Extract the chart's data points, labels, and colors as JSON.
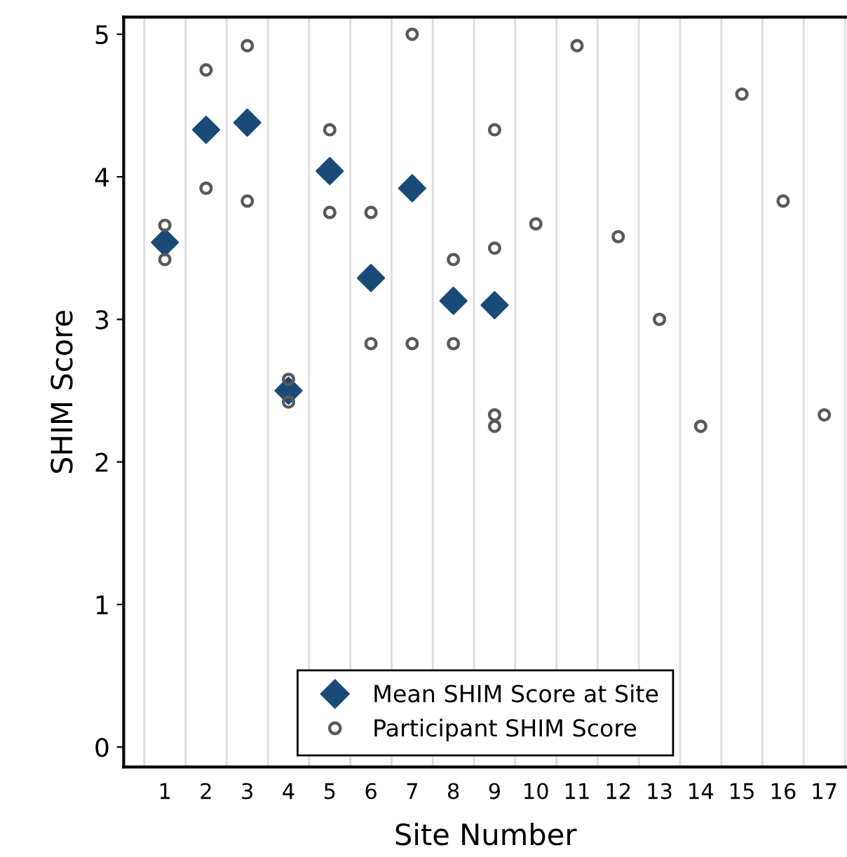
{
  "chart_data": {
    "type": "scatter",
    "xlabel": "Site Number",
    "ylabel": "SHIM Score",
    "categories": [
      "1",
      "2",
      "3",
      "4",
      "5",
      "6",
      "7",
      "8",
      "9",
      "10",
      "11",
      "12",
      "13",
      "14",
      "15",
      "16",
      "17"
    ],
    "series": [
      {
        "name": "Mean SHIM Score at Site",
        "color": "#1a4a78",
        "marker": "diamond",
        "x": [
          "1",
          "2",
          "3",
          "4",
          "5",
          "6",
          "7",
          "8",
          "9"
        ],
        "values": [
          3.54,
          4.33,
          4.38,
          2.5,
          4.04,
          3.29,
          3.92,
          3.13,
          3.1
        ]
      },
      {
        "name": "Participant SHIM Score",
        "color": "#595959",
        "marker": "circle",
        "x": [
          "1",
          "1",
          "2",
          "2",
          "3",
          "3",
          "4",
          "4",
          "5",
          "5",
          "6",
          "6",
          "7",
          "7",
          "8",
          "8",
          "9",
          "9",
          "9",
          "9",
          "10",
          "11",
          "12",
          "13",
          "14",
          "15",
          "16",
          "17"
        ],
        "values": [
          3.66,
          3.42,
          4.75,
          3.92,
          4.92,
          3.83,
          2.58,
          2.42,
          4.33,
          3.75,
          3.75,
          2.83,
          5.0,
          2.83,
          3.42,
          2.83,
          4.33,
          3.5,
          2.33,
          2.25,
          3.67,
          4.92,
          3.58,
          3.0,
          2.25,
          4.58,
          3.83,
          2.33
        ]
      }
    ],
    "ylim": [
      -0.14,
      5.12
    ],
    "yticks": [
      0,
      1,
      2,
      3,
      4,
      5
    ],
    "grid": "x",
    "legend": "bottom"
  }
}
